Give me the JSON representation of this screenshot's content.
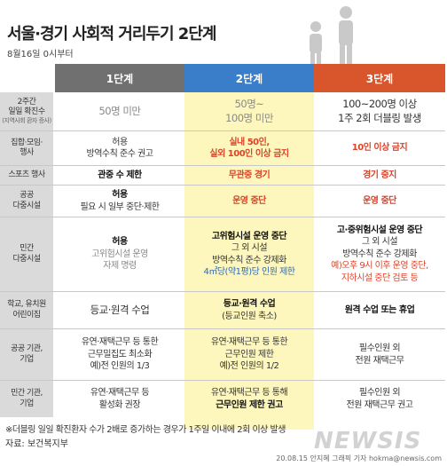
{
  "title": "서울·경기 사회적 거리두기 2단계",
  "subtitle": "8월16일 0시부터",
  "headers": [
    "1단계",
    "2단계",
    "3단계"
  ],
  "rows": [
    {
      "label": [
        "2주간",
        "일일 확진수"
      ],
      "label_note": "(지역사회 환자 증사)",
      "c1": [
        "50명 미만"
      ],
      "c2": [
        "50명~",
        "100명 미만"
      ],
      "c3": [
        "100~200명 이상",
        "1주 2회 더블링 발생"
      ]
    },
    {
      "label": [
        "집합·모임·",
        "행사"
      ],
      "c1": [
        "허용",
        "방역수칙 준수 권고"
      ],
      "c2": [
        "실내 50인,",
        "실외 100인 이상 금지"
      ],
      "c3": [
        "10인 이상 금지"
      ]
    },
    {
      "label": [
        "스포츠 행사"
      ],
      "c1": [
        "관중 수 제한"
      ],
      "c2": [
        "무관중 경기"
      ],
      "c3": [
        "경기 중지"
      ]
    },
    {
      "label": [
        "공공",
        "다중시설"
      ],
      "c1": [
        "허용",
        "필요 시 일부 중단·제한"
      ],
      "c2": [
        "운영 중단"
      ],
      "c3": [
        "운영 중단"
      ]
    },
    {
      "label": [
        "민간",
        "다중시설"
      ],
      "c1": [
        "허용",
        "고위험시설 운영",
        "자제 명령"
      ],
      "c2": [
        "고위험시설 운영 중단",
        "그 외 시설",
        "방역수칙 준수 강제화",
        "4㎡당(약1평)당 인원 제한"
      ],
      "c3": [
        "고·중위험시설 운영 중단",
        "그 외 시설",
        "방역수칙 준수 강제화",
        "예)오후 9시 이후 운영 중단,",
        "지하시설 중단 검토 등"
      ]
    },
    {
      "label": [
        "학교, 유치원",
        "어린이집"
      ],
      "c1": [
        "등교·원격 수업"
      ],
      "c2": [
        "등교·원격 수업",
        "(등교인원 축소)"
      ],
      "c3": [
        "원격 수업 또는 휴업"
      ]
    },
    {
      "label": [
        "공공 기관,",
        "기업"
      ],
      "c1": [
        "유연·재택근무 등 통한",
        "근무밀집도 최소화",
        "예)전 인원의 1/3"
      ],
      "c2": [
        "유연·재택근무 등 통한",
        "근무인원 제한",
        "예)전 인원의 1/2"
      ],
      "c3": [
        "필수인원 외",
        "전원 재택근무"
      ]
    },
    {
      "label": [
        "민간 기관,",
        "기업"
      ],
      "c1": [
        "유연·재택근무 등",
        "활성화 권장"
      ],
      "c2": [
        "유연·재택근무 등 통해",
        "근무인원 제한 권고"
      ],
      "c3": [
        "필수인원 외",
        "전원 재택근무 권고"
      ]
    }
  ],
  "footnote": "※더블링 일일 확진환자 수가 2배로 증가하는 경우가 1주일 이내에 2회 이상 발생",
  "source": "자료: 보건복지부",
  "credit": "20.08.15 안지혜 그래픽 기자 hokma@newsis.com",
  "logo": "NEWSIS",
  "colors": {
    "stage1": "#707070",
    "stage2": "#3a7ec9",
    "stage3": "#d9552c",
    "stage2_bg": "#fdf7bd",
    "label_bg": "#dadada",
    "accent_red": "#d9442a",
    "accent_blue": "#2c6bbf"
  }
}
